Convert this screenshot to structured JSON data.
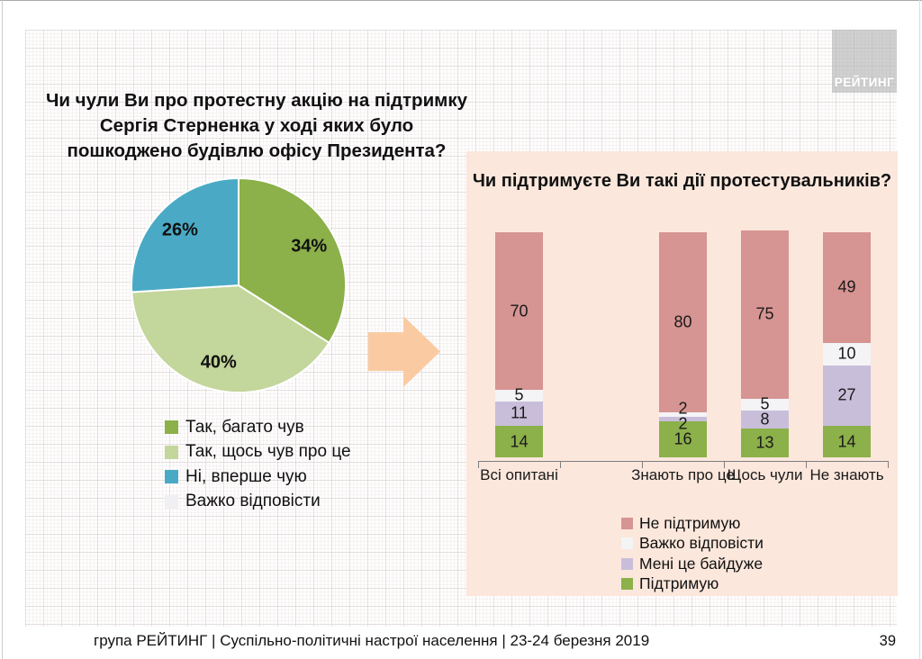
{
  "slide": {
    "logo_text": "РЕЙТИНГ",
    "footer": "група РЕЙТИНГ | Суспільно-політичні настрої населення  | 23-24 березня 2019",
    "page_number": "39"
  },
  "chart_data": [
    {
      "type": "pie",
      "title": "Чи чули Ви про протестну акцію на підтримку Сергія Стерненка у ході яких було пошкоджено будівлю офісу Президента?",
      "value_suffix": "%",
      "legend_position": "bottom-left",
      "slices": [
        {
          "label": "Так, багато чув",
          "value": 34,
          "color": "#8CB04A"
        },
        {
          "label": "Так, щось чув про це",
          "value": 40,
          "color": "#C3D69B"
        },
        {
          "label": "Ні, вперше чую",
          "value": 26,
          "color": "#4AAAC5"
        },
        {
          "label": "Важко відповісти",
          "value": 0,
          "color": "#F0F0F2"
        }
      ]
    },
    {
      "type": "stacked-bar",
      "title": "Чи підтримуєте Ви такі дії протестувальників?",
      "categories": [
        "Всі опитані",
        "Знають про це",
        "Щось чули",
        "Не знають"
      ],
      "series": [
        {
          "name": "Не підтримую",
          "color": "#D69492",
          "values": [
            70,
            80,
            75,
            49
          ]
        },
        {
          "name": "Важко відповісти",
          "color": "#F4F3F6",
          "values": [
            5,
            2,
            5,
            10
          ]
        },
        {
          "name": "Мені це байдуже",
          "color": "#C9BEDA",
          "values": [
            11,
            2,
            8,
            27
          ]
        },
        {
          "name": "Підтримую",
          "color": "#8CB04A",
          "values": [
            14,
            16,
            13,
            14
          ]
        }
      ],
      "stack_order_bottom_to_top": [
        "Підтримую",
        "Мені це байдуже",
        "Важко відповісти",
        "Не підтримую"
      ],
      "ylim": [
        0,
        100
      ],
      "grid": false,
      "legend_position": "bottom"
    }
  ]
}
